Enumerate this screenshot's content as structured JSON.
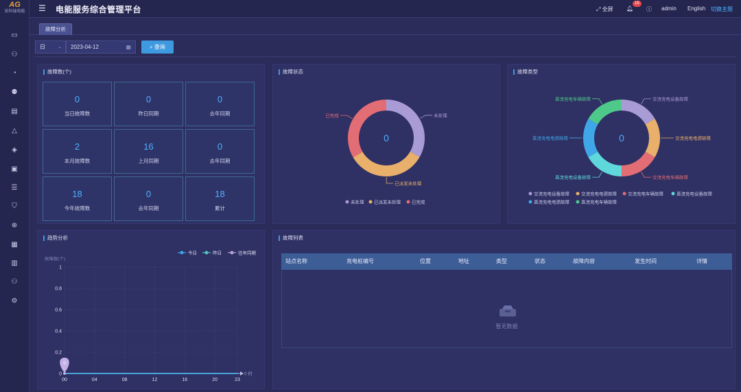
{
  "app": {
    "logo_mark": "AG",
    "logo_text": "安科瑞电能",
    "title": "电能服务综合管理平台"
  },
  "topbar": {
    "fullscreen": "全屏",
    "notification_count": "16",
    "user": "admin",
    "language": "English",
    "theme": "切换主题"
  },
  "tabs": [
    {
      "label": "故障分析"
    }
  ],
  "filter": {
    "period": "日",
    "date": "2023-04-12",
    "query_label": "查询"
  },
  "fault_count": {
    "title": "故障数(个)",
    "cells": [
      {
        "value": "0",
        "label": "当日故障数"
      },
      {
        "value": "0",
        "label": "昨日同期"
      },
      {
        "value": "0",
        "label": "去年同期"
      },
      {
        "value": "2",
        "label": "本月故障数"
      },
      {
        "value": "16",
        "label": "上月同期"
      },
      {
        "value": "0",
        "label": "去年同期"
      },
      {
        "value": "18",
        "label": "今年故障数"
      },
      {
        "value": "0",
        "label": "去年同期"
      },
      {
        "value": "18",
        "label": "累计"
      }
    ]
  },
  "fault_status": {
    "title": "故障状态",
    "center_value": "0",
    "colors": [
      "#a99bd6",
      "#e9b06c",
      "#e36d74"
    ],
    "segments": [
      {
        "name": "未处理",
        "share": 0.333
      },
      {
        "name": "已派发未处理",
        "share": 0.333
      },
      {
        "name": "已完成",
        "share": 0.334
      }
    ]
  },
  "fault_type": {
    "title": "故障类型",
    "center_value": "0",
    "colors": [
      "#a99bd6",
      "#e9b06c",
      "#e36d74",
      "#5fd8dc",
      "#3fa7e8",
      "#4fc98a"
    ],
    "segments": [
      {
        "name": "交流充电设备故障",
        "share": 0.1667
      },
      {
        "name": "交流充电电源故障",
        "share": 0.1667
      },
      {
        "name": "交流充电车辆故障",
        "share": 0.1667
      },
      {
        "name": "直流充电设备故障",
        "share": 0.1667
      },
      {
        "name": "直流充电电源故障",
        "share": 0.1666
      },
      {
        "name": "直流充电车辆故障",
        "share": 0.1666
      }
    ]
  },
  "trend": {
    "title": "趋势分析",
    "chart_data": {
      "type": "line",
      "ylabel": "故障数(个)",
      "xunit": "时",
      "ylim": [
        0,
        1
      ],
      "yticks": [
        "1",
        "0.8",
        "0.6",
        "0.4",
        "0.2",
        "0"
      ],
      "xticks": [
        "00",
        "04",
        "08",
        "12",
        "16",
        "20",
        "23"
      ],
      "x": [
        0,
        23
      ],
      "colors": [
        "#3fa7e8",
        "#4fc9c1",
        "#b9a4e0"
      ],
      "series": [
        {
          "name": "今日",
          "values": [
            0,
            0
          ]
        },
        {
          "name": "昨日",
          "values": [
            0,
            0
          ]
        },
        {
          "name": "往年同期",
          "values": [
            0,
            0
          ]
        }
      ],
      "marker": {
        "x": 0,
        "y": 0,
        "label": "0"
      }
    }
  },
  "fault_list": {
    "title": "故障列表",
    "columns": [
      "站点名称",
      "充电桩编号",
      "位置",
      "地址",
      "类型",
      "状态",
      "故障内容",
      "发生时间",
      "详情"
    ],
    "empty_text": "暂无数据"
  }
}
